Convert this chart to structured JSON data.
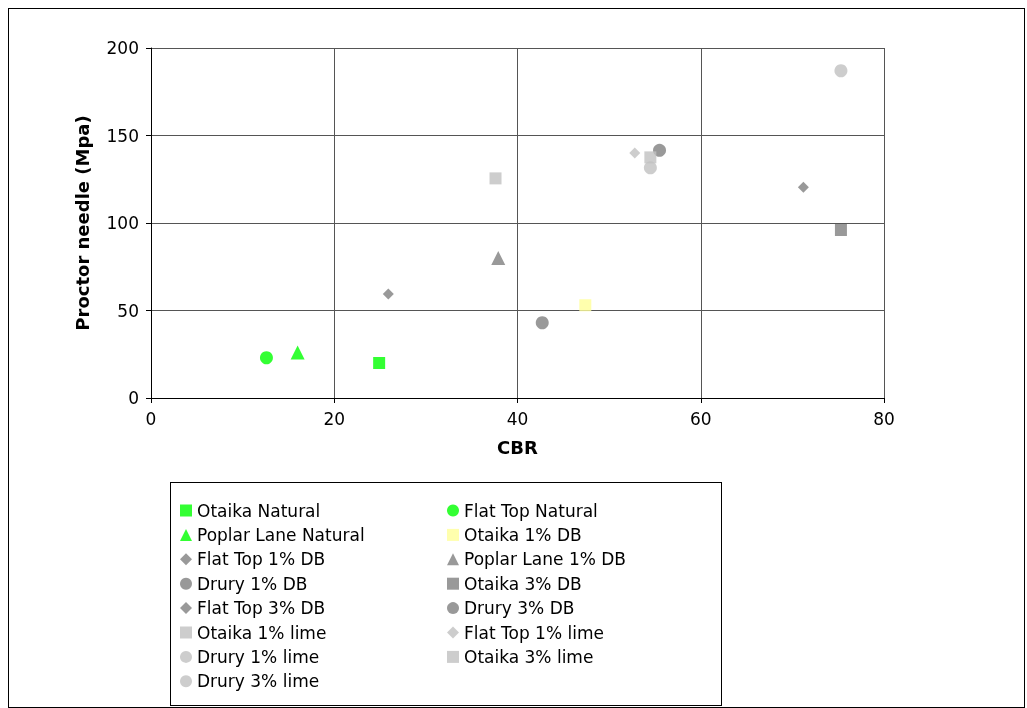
{
  "chart_data": {
    "type": "scatter",
    "xlabel": "CBR",
    "ylabel": "Proctor needle (Mpa)",
    "xlim": [
      0,
      80
    ],
    "xticks": [
      0,
      20,
      40,
      60,
      80
    ],
    "ylim": [
      0,
      200
    ],
    "yticks": [
      0,
      50,
      100,
      150,
      200
    ],
    "grid": true,
    "legend": "bottom",
    "series": [
      {
        "name": "Otaika Natural",
        "color": "#00ff00",
        "marker": "square",
        "x": [
          24.9
        ],
        "values": [
          20
        ]
      },
      {
        "name": "Flat Top Natural",
        "color": "#00ff00",
        "marker": "circle",
        "x": [
          12.6
        ],
        "values": [
          23
        ]
      },
      {
        "name": "Poplar Lane Natural",
        "color": "#00ff00",
        "marker": "triangle",
        "x": [
          16
        ],
        "values": [
          26
        ]
      },
      {
        "name": "Otaika 1% DB",
        "color": "#ffff99",
        "marker": "square",
        "x": [
          47.4
        ],
        "values": [
          53
        ]
      },
      {
        "name": "Flat Top 1% DB",
        "color": "#808080",
        "marker": "diamond",
        "x": [
          25.9
        ],
        "values": [
          59.5
        ]
      },
      {
        "name": "Poplar Lane 1% DB",
        "color": "#808080",
        "marker": "triangle",
        "x": [
          37.9
        ],
        "values": [
          80
        ]
      },
      {
        "name": "Drury 1% DB",
        "color": "#808080",
        "marker": "circle",
        "x": [
          42.7
        ],
        "values": [
          43
        ]
      },
      {
        "name": "Otaika 3% DB",
        "color": "#808080",
        "marker": "square",
        "x": [
          75.3
        ],
        "values": [
          96
        ]
      },
      {
        "name": "Flat Top 3% DB",
        "color": "#808080",
        "marker": "diamond",
        "x": [
          71.2
        ],
        "values": [
          120.5
        ]
      },
      {
        "name": "Drury 3% DB",
        "color": "#808080",
        "marker": "circle",
        "x": [
          55.5
        ],
        "values": [
          141.5
        ]
      },
      {
        "name": "Otaika 1% lime",
        "color": "#c0c0c0",
        "marker": "square",
        "x": [
          54.5
        ],
        "values": [
          137.5
        ]
      },
      {
        "name": "Flat Top 1% lime",
        "color": "#c0c0c0",
        "marker": "diamond",
        "x": [
          52.8
        ],
        "values": [
          140
        ]
      },
      {
        "name": "Drury 1% lime",
        "color": "#c0c0c0",
        "marker": "circle",
        "x": [
          54.5
        ],
        "values": [
          131.5
        ]
      },
      {
        "name": "Otaika 3% lime",
        "color": "#c0c0c0",
        "marker": "square",
        "x": [
          37.6
        ],
        "values": [
          125.5
        ]
      },
      {
        "name": "Drury 3% lime",
        "color": "#c0c0c0",
        "marker": "circle",
        "x": [
          75.3
        ],
        "values": [
          187
        ]
      }
    ]
  }
}
